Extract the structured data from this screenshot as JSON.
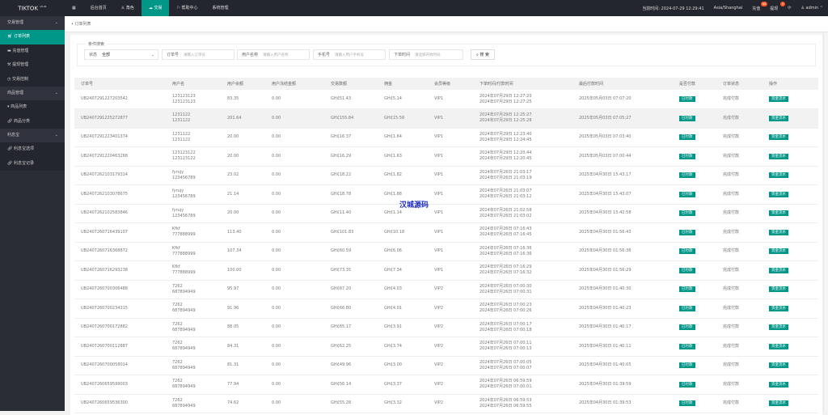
{
  "app": {
    "logo": "TIKTOK",
    "version": "v5.91"
  },
  "nav": [
    {
      "icon": "grid-icon",
      "label": ""
    },
    {
      "label": "后台首页"
    },
    {
      "icon": "user-icon",
      "label": "角色"
    },
    {
      "icon": "cloud-icon",
      "label": "交易"
    },
    {
      "icon": "flag-icon",
      "label": "帮助中心"
    },
    {
      "label": "系统管理"
    }
  ],
  "header": {
    "time": "当前时间: 2024-07-29 12:29:41",
    "tz": "Asia/Shanghai",
    "recharge": "充值",
    "recharge_badge": "66",
    "withdraw": "提现",
    "withdraw_badge": "5",
    "user": "admin"
  },
  "sidebar": {
    "g1": "交易管理",
    "i1": "订单列表",
    "i2": "充值管理",
    "i3": "提现管理",
    "i4": "交易控制",
    "g2": "商品管理",
    "i5": "商品列表",
    "i6": "商品分类",
    "g3": "利息宝",
    "i7": "利息宝选项",
    "i8": "利息宝记录"
  },
  "tab": "订单列表",
  "search": {
    "legend": "条件搜索",
    "status_label": "状态",
    "status_value": "全部",
    "order_label": "订单号",
    "order_ph": "请输入订单号",
    "user_label": "用户名称",
    "user_ph": "请输入用户名称",
    "phone_label": "手机号",
    "phone_ph": "请输入用户手机号",
    "time_label": "下单时间",
    "time_ph": "请选择开始时间",
    "button": "搜 索"
  },
  "columns": [
    "订单号",
    "用户名",
    "用户余额",
    "用户冻结金额",
    "交易数额",
    "佣金",
    "会员等级",
    "下单时间/付款时间",
    "最后付款时间",
    "是否付款",
    "订单状态",
    "操作"
  ],
  "watermark": "汉城源码",
  "rows": [
    [
      "UB2407291227203542",
      "123123123",
      "123123123",
      "83.35",
      "0.00",
      "GH₵51.43",
      "GH₵5.14",
      "VIP1",
      "2024年07月29日 12:27:20",
      "2024年07月29日 12:27:25",
      "2025年05月03日 07:07:20",
      "已付款",
      "完成付款",
      "资金流水"
    ],
    [
      "UB2407291225272877",
      "1231122",
      "1231122",
      "201.64",
      "0.00",
      "GH₵155.84",
      "GH₵15.58",
      "VIP1",
      "2024年07月29日 12:25:27",
      "2024年07月29日 12:25:28",
      "2025年05月03日 07:05:27",
      "已付款",
      "完成付款",
      "资金流水"
    ],
    [
      "UB2407291223401374",
      "1231122",
      "1231122",
      "20.00",
      "0.00",
      "GH₵16.37",
      "GH₵1.64",
      "VIP1",
      "2024年07月29日 12:23:40",
      "2024年07月29日 12:24:45",
      "2025年05月03日 07:03:40",
      "已付款",
      "完成付款",
      "资金流水"
    ],
    [
      "UB2407291220463268",
      "123123122",
      "123123122",
      "20.00",
      "0.00",
      "GH₵16.29",
      "GH₵1.63",
      "VIP1",
      "2024年07月29日 12:20:44",
      "2024年07月29日 12:20:45",
      "2025年05月03日 07:00:44",
      "已付款",
      "完成付款",
      "资金流水"
    ],
    [
      "UB2407262103179314",
      "fyrujy",
      "123456789",
      "23.02",
      "0.00",
      "GH₵18.22",
      "GH₵1.82",
      "VIP1",
      "2024年07月26日 21:03:17",
      "2024年07月26日 21:03:19",
      "2025年04月30日 15:43:17",
      "已付款",
      "完成付款",
      "资金流水"
    ],
    [
      "UB2407262103078675",
      "fyrujy",
      "123456789",
      "21.14",
      "0.00",
      "GH₵18.78",
      "GH₵1.88",
      "VIP1",
      "2024年07月26日 21:03:07",
      "2024年07月26日 21:03:12",
      "2025年04月30日 15:43:07",
      "已付款",
      "完成付款",
      "资金流水"
    ],
    [
      "UB2407262102583846",
      "fyrujy",
      "123456789",
      "20.00",
      "0.00",
      "GH₵11.40",
      "GH₵1.14",
      "VIP1",
      "2024年07月26日 21:02:58",
      "2024年07月26日 21:03:02",
      "2025年04月30日 15:42:58",
      "已付款",
      "完成付款",
      "资金流水"
    ],
    [
      "UB2407260716439107",
      "Kfkf",
      "777888999",
      "113.40",
      "0.00",
      "GH₵101.83",
      "GH₵10.18",
      "VIP1",
      "2024年07月26日 07:16:43",
      "2024年07月26日 07:16:45",
      "2025年04月30日 01:56:43",
      "已付款",
      "完成付款",
      "资金流水"
    ],
    [
      "UB2407260716368872",
      "Kfkf",
      "777888999",
      "107.34",
      "0.00",
      "GH₵60.59",
      "GH₵6.06",
      "VIP1",
      "2024年07月26日 07:16:36",
      "2024年07月26日 07:16:36",
      "2025年04月30日 01:56:36",
      "已付款",
      "完成付款",
      "资金流水"
    ],
    [
      "UB2407260716293238",
      "Kfkf",
      "777888999",
      "100.00",
      "0.00",
      "GH₵73.35",
      "GH₵7.34",
      "VIP1",
      "2024年07月26日 07:16:29",
      "2024年07月26日 07:16:32",
      "2025年04月30日 01:56:29",
      "已付款",
      "完成付款",
      "资金流水"
    ],
    [
      "UB2407260700306488",
      "7262",
      "687894949",
      "95.97",
      "0.00",
      "GH₵67.20",
      "GH₵4.03",
      "VIP2",
      "2024年07月26日 07:00:30",
      "2024年07月26日 07:00:31",
      "2025年04月30日 01:40:30",
      "已付款",
      "完成付款",
      "资金流水"
    ],
    [
      "UB2407260700234315",
      "7262",
      "687894949",
      "91.96",
      "0.00",
      "GH₵66.80",
      "GH₵4.01",
      "VIP2",
      "2024年07月26日 07:00:23",
      "2024年07月26日 07:00:26",
      "2025年04月30日 01:40:23",
      "已付款",
      "完成付款",
      "资金流水"
    ],
    [
      "UB2407260700172882",
      "7262",
      "687894949",
      "88.05",
      "0.00",
      "GH₵65.17",
      "GH₵3.91",
      "VIP2",
      "2024年07月26日 07:00:17",
      "2024年07月26日 07:00:18",
      "2025年04月30日 01:40:17",
      "已付款",
      "完成付款",
      "资金流水"
    ],
    [
      "UB2407260700112887",
      "7262",
      "687894949",
      "84.31",
      "0.00",
      "GH₵62.25",
      "GH₵3.74",
      "VIP2",
      "2024年07月26日 07:00:11",
      "2024年07月26日 07:00:13",
      "2025年04月30日 01:40:11",
      "已付款",
      "完成付款",
      "资金流水"
    ],
    [
      "UB2407260700058014",
      "7262",
      "687894949",
      "81.31",
      "0.00",
      "GH₵49.96",
      "GH₵3.00",
      "VIP2",
      "2024年07月26日 07:00:05",
      "2024年07月26日 07:00:07",
      "2025年04月30日 01:40:05",
      "已付款",
      "完成付款",
      "资金流水"
    ],
    [
      "UB2407260659599003",
      "7262",
      "687894949",
      "77.94",
      "0.00",
      "GH₵56.14",
      "GH₵3.37",
      "VIP2",
      "2024年07月26日 06:59:59",
      "2024年07月26日 07:00:01",
      "2025年04月30日 01:39:59",
      "已付款",
      "完成付款",
      "资金流水"
    ],
    [
      "UB2407260659536300",
      "7262",
      "687894949",
      "74.62",
      "0.00",
      "GH₵55.28",
      "GH₵3.32",
      "VIP2",
      "2024年07月26日 06:59:53",
      "2024年07月26日 06:59:55",
      "2025年04月30日 01:39:53",
      "已付款",
      "完成付款",
      "资金流水"
    ]
  ]
}
